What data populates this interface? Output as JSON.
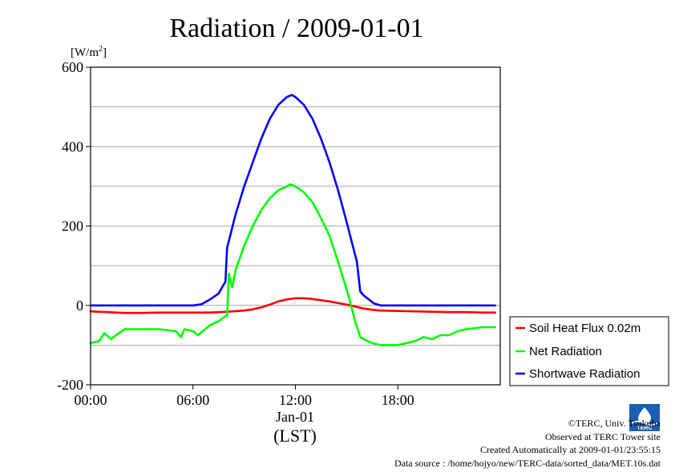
{
  "chart_data": {
    "type": "line",
    "title": "Radiation / 2009-01-01",
    "ylabel_unit_prefix": "[W/m",
    "ylabel_unit_exp": "2",
    "ylabel_unit_suffix": "]",
    "xlabel": "(LST)",
    "x_date_label": "Jan-01",
    "xlim": [
      0,
      24
    ],
    "ylim": [
      -200,
      600
    ],
    "x_ticks": [
      0,
      6,
      12,
      18
    ],
    "x_tick_labels": [
      "00:00",
      "06:00",
      "12:00",
      "18:00"
    ],
    "y_ticks": [
      -200,
      0,
      200,
      400,
      600
    ],
    "y_tick_labels": [
      "-200",
      "0",
      "200",
      "400",
      "600"
    ],
    "y_gridlines": [
      -100,
      0,
      100,
      200,
      300,
      400,
      500
    ],
    "legend_position": "right, outside plot",
    "series": [
      {
        "name": "Soil Heat Flux 0.02m",
        "color": "#ff0000",
        "x": [
          0,
          1,
          2,
          3,
          4,
          5,
          6,
          7,
          8,
          9,
          9.5,
          10,
          10.5,
          11,
          11.5,
          12,
          12.5,
          13,
          13.5,
          14,
          14.5,
          15,
          15.5,
          16,
          16.5,
          17,
          18,
          19,
          20,
          21,
          22,
          23,
          23.7
        ],
        "y": [
          -15,
          -17,
          -19,
          -19,
          -18,
          -18,
          -18,
          -18,
          -16,
          -13,
          -10,
          -5,
          2,
          10,
          15,
          18,
          18,
          16,
          13,
          10,
          6,
          2,
          -3,
          -8,
          -11,
          -13,
          -14,
          -15,
          -16,
          -17,
          -17,
          -18,
          -18
        ]
      },
      {
        "name": "Net Radiation",
        "color": "#00ff00",
        "x": [
          0,
          0.5,
          0.8,
          1.2,
          1.5,
          2,
          3,
          4,
          5,
          5.3,
          5.5,
          6,
          6.3,
          6.7,
          7,
          7.5,
          7.8,
          8,
          8.1,
          8.3,
          8.5,
          9,
          9.5,
          10,
          10.5,
          11,
          11.5,
          11.7,
          12,
          12.5,
          13,
          13.5,
          14,
          14.5,
          15,
          15.2,
          15.5,
          15.8,
          16,
          16.5,
          17,
          17.5,
          18,
          18.5,
          19,
          19.5,
          20,
          20.5,
          21,
          21.5,
          22,
          23,
          23.7
        ],
        "y": [
          -95,
          -90,
          -70,
          -85,
          -75,
          -60,
          -60,
          -60,
          -65,
          -80,
          -60,
          -65,
          -75,
          -60,
          -50,
          -40,
          -30,
          -25,
          80,
          45,
          90,
          150,
          200,
          240,
          270,
          290,
          300,
          305,
          300,
          285,
          260,
          220,
          175,
          110,
          40,
          10,
          -40,
          -80,
          -85,
          -95,
          -100,
          -100,
          -100,
          -95,
          -90,
          -80,
          -85,
          -75,
          -75,
          -65,
          -60,
          -55,
          -55
        ]
      },
      {
        "name": "Shortwave Radiation",
        "color": "#0000ff",
        "x": [
          0,
          1,
          2,
          3,
          4,
          5,
          6,
          6.5,
          7,
          7.5,
          7.9,
          8,
          8.5,
          9,
          9.5,
          10,
          10.5,
          11,
          11.5,
          11.8,
          12,
          12.5,
          13,
          13.5,
          14,
          14.5,
          15,
          15.3,
          15.6,
          15.8,
          16,
          16.3,
          16.6,
          17,
          18,
          19,
          20,
          21,
          22,
          23,
          23.7
        ],
        "y": [
          0,
          0,
          0,
          0,
          0,
          0,
          0,
          3,
          15,
          30,
          60,
          145,
          230,
          300,
          360,
          420,
          470,
          505,
          525,
          530,
          525,
          505,
          470,
          420,
          360,
          290,
          210,
          160,
          110,
          35,
          25,
          15,
          5,
          0,
          0,
          0,
          0,
          0,
          0,
          0,
          0
        ]
      }
    ]
  },
  "footer": {
    "copyright": "©TERC, Univ. Tsukuba",
    "observed": "Observed at TERC Tower site",
    "created": "Created Automatically at 2009-01-01/23:55:15",
    "source": "Data source : /home/hojyo/new/TERC-data/sorted_data/MET.10s.dat",
    "logo_text": "TERC"
  }
}
